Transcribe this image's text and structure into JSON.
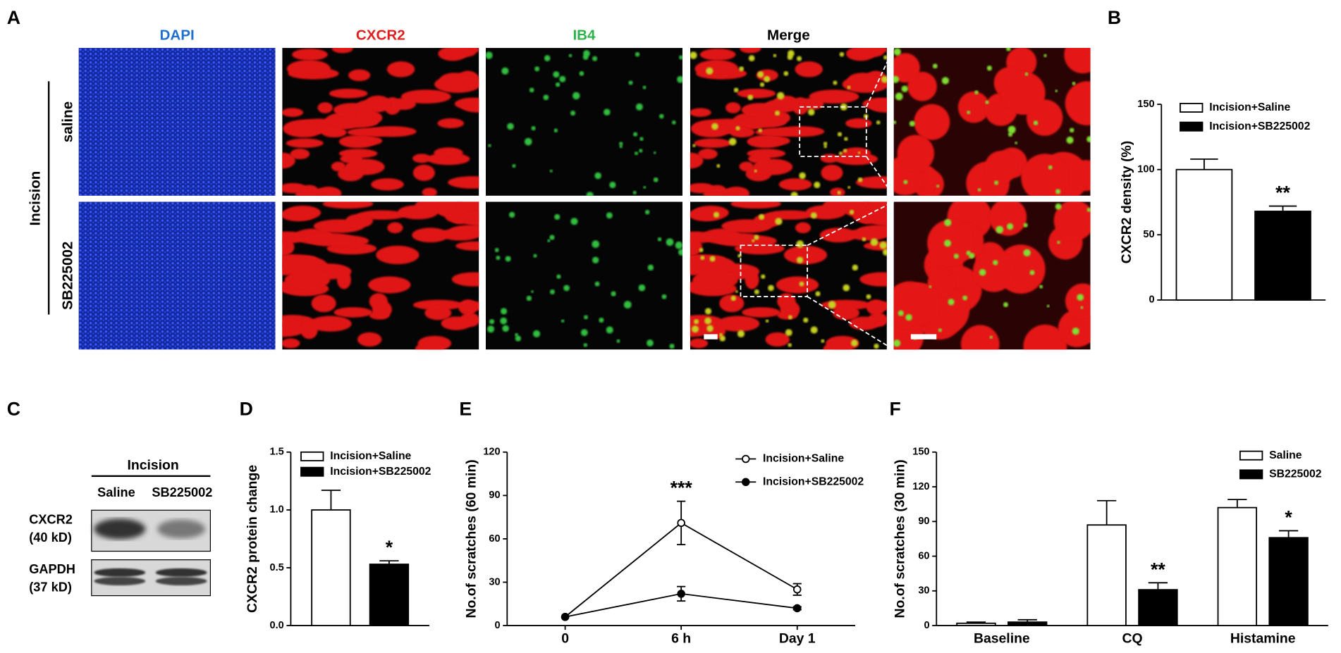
{
  "panel_labels": [
    "A",
    "B",
    "C",
    "D",
    "E",
    "F"
  ],
  "panel_a": {
    "columns": [
      "DAPI",
      "CXCR2",
      "IB4",
      "Merge"
    ],
    "group": "Incision",
    "rows": [
      "saline",
      "SB225002"
    ]
  },
  "panel_c": {
    "group": "Incision",
    "lanes": [
      "Saline",
      "SB225002"
    ],
    "bands": [
      [
        "CXCR2",
        "(40 kD)"
      ],
      [
        "GAPDH",
        "(37 kD)"
      ]
    ]
  },
  "chart_data": [
    {
      "type": "bar",
      "ylabel": "CXCR2 density (%)",
      "ylim": [
        0,
        150
      ],
      "yticks": [
        0,
        50,
        100,
        150
      ],
      "series": [
        {
          "name": "Incision+Saline",
          "color": "#ffffff",
          "values": [
            100
          ],
          "errors": [
            8
          ],
          "significance": [
            null
          ]
        },
        {
          "name": "Incision+SB225002",
          "color": "#000000",
          "values": [
            68
          ],
          "errors": [
            4
          ],
          "significance": [
            "**"
          ]
        }
      ]
    },
    {
      "type": "bar",
      "ylabel": "CXCR2 protein change",
      "ylim": [
        0,
        1.5
      ],
      "yticks": [
        {
          "value": 0,
          "label": "0.0"
        },
        {
          "value": 0.5,
          "label": "0.5"
        },
        {
          "value": 1,
          "label": "1.0"
        },
        {
          "value": 1.5,
          "label": "1.5"
        }
      ],
      "series": [
        {
          "name": "Incision+Saline",
          "color": "#ffffff",
          "values": [
            1.0
          ],
          "errors": [
            0.17
          ],
          "significance": [
            null
          ]
        },
        {
          "name": "Incision+SB225002",
          "color": "#000000",
          "values": [
            0.53
          ],
          "errors": [
            0.03
          ],
          "significance": [
            "*"
          ]
        }
      ]
    },
    {
      "type": "line",
      "ylabel": "No.of scratches (60 min)",
      "categories": [
        "0",
        "6 h",
        "Day 1"
      ],
      "ylim": [
        0,
        120
      ],
      "yticks": [
        0,
        30,
        60,
        90,
        120
      ],
      "series": [
        {
          "name": "Incision+Saline",
          "color": "#000000",
          "marker": "open",
          "values": [
            6,
            71,
            25
          ],
          "errors": [
            0,
            15,
            4
          ],
          "significance": [
            null,
            "***",
            null
          ]
        },
        {
          "name": "Incision+SB225002",
          "color": "#000000",
          "marker": "filled",
          "values": [
            6,
            22,
            12
          ],
          "errors": [
            0,
            5,
            1
          ],
          "significance": [
            null,
            null,
            null
          ]
        }
      ]
    },
    {
      "type": "bar",
      "ylabel": "No.of scratches (30 min)",
      "categories": [
        "Baseline",
        "CQ",
        "Histamine"
      ],
      "ylim": [
        0,
        150
      ],
      "yticks": [
        0,
        30,
        60,
        90,
        120,
        150
      ],
      "series": [
        {
          "name": "Saline",
          "color": "#ffffff",
          "values": [
            2,
            87,
            102
          ],
          "errors": [
            1,
            21,
            7
          ],
          "significance": [
            null,
            null,
            null
          ]
        },
        {
          "name": "SB225002",
          "color": "#000000",
          "values": [
            3,
            31,
            76
          ],
          "errors": [
            2,
            6,
            6
          ],
          "significance": [
            null,
            "**",
            "*"
          ]
        }
      ]
    }
  ]
}
